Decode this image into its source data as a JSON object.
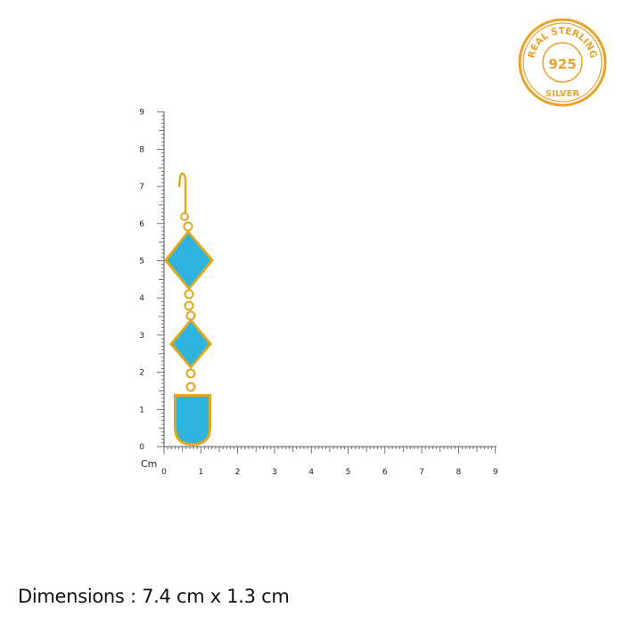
{
  "badge": {
    "top_text": "REAL STERLING",
    "center_text": "925",
    "bottom_text": "SILVER",
    "color": "#e8a32a"
  },
  "ruler": {
    "unit_label": "Cm",
    "range_cm": [
      0,
      9
    ],
    "x_labels": [
      "0",
      "1",
      "2",
      "3",
      "4",
      "5",
      "6",
      "7",
      "8",
      "9"
    ],
    "y_labels": [
      "0",
      "1",
      "2",
      "3",
      "4",
      "5",
      "6",
      "7",
      "8",
      "9"
    ]
  },
  "product": {
    "stone_color": "#2fb4e0",
    "metal_color": "#e0a81c",
    "dimensions_text": "Dimensions : 7.4 cm x 1.3 cm"
  }
}
